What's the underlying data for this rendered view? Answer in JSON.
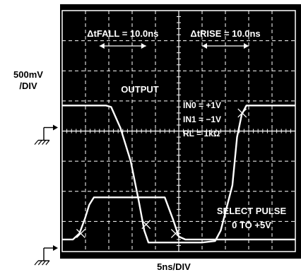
{
  "chart_data": {
    "type": "line",
    "title": "",
    "xlabel": "5ns/DIV",
    "ylabel_lines": [
      "500mV",
      "/DIV"
    ],
    "grid": true,
    "divisions": {
      "x": 10,
      "y": 8
    },
    "xlim": [
      0,
      50
    ],
    "x_unit": "ns",
    "series": [
      {
        "name": "OUTPUT",
        "x": [
          0,
          9.4,
          10.5,
          12.5,
          14.7,
          16.4,
          17.6,
          18.5,
          19.0,
          20.0,
          30.0,
          32.8,
          34.0,
          36.5,
          37.5,
          38.5,
          39.5,
          41.0,
          50.0
        ],
        "y": [
          4.85,
          4.85,
          4.8,
          4.1,
          3.0,
          1.7,
          0.7,
          0.3,
          0.3,
          0.3,
          0.3,
          0.35,
          0.7,
          2.2,
          3.8,
          4.55,
          4.85,
          4.85,
          4.85
        ],
        "color": "#ffffff"
      },
      {
        "name": "SELECT PULSE",
        "x": [
          0,
          2.3,
          3.7,
          4.9,
          5.8,
          6.8,
          20.0,
          22.0,
          23.8,
          25.0,
          26.4,
          50.0
        ],
        "y": [
          0.4,
          0.4,
          0.6,
          1.1,
          1.55,
          1.8,
          1.8,
          1.8,
          1.05,
          0.5,
          0.4,
          0.4
        ],
        "color": "#ffffff"
      }
    ],
    "annotations": {
      "fall": {
        "label": "ΔtFALL = 10.0ns",
        "from_x": 8.0,
        "to_x": 18.0
      },
      "rise": {
        "label": "ΔtRISE = 10.0ns",
        "from_x": 30.0,
        "to_x": 40.0
      },
      "conditions": [
        "IN0 = +1V",
        "IN1 = −1V",
        "RL = 1kΩ"
      ],
      "output_label": "OUTPUT",
      "select_label_lines": [
        "SELECT PULSE",
        "0 TO +5V"
      ],
      "markers": [
        {
          "x": 18.0,
          "y": 0.9
        },
        {
          "x": 38.6,
          "y": 4.6
        },
        {
          "x": 4.0,
          "y": 0.6
        },
        {
          "x": 24.3,
          "y": 0.6
        }
      ]
    }
  },
  "colors": {
    "background": "#000000",
    "grid": "#ffffff",
    "trace": "#ffffff"
  }
}
